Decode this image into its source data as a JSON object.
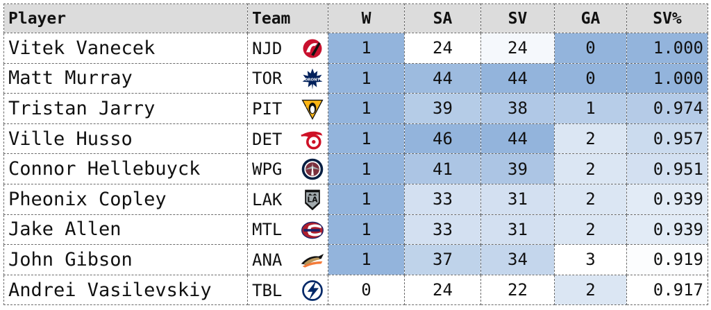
{
  "chart_data": {
    "type": "table",
    "columns": [
      "Player",
      "Team",
      "W",
      "SA",
      "SV",
      "GA",
      "SV%"
    ],
    "rows": [
      {
        "player": "Vitek Vanecek",
        "team": "NJD",
        "logo": "devils-logo-icon",
        "w": "1",
        "sa": "24",
        "sv": "24",
        "ga": "0",
        "svp": "1.000"
      },
      {
        "player": "Matt Murray",
        "team": "TOR",
        "logo": "maple-leafs-logo-icon",
        "w": "1",
        "sa": "44",
        "sv": "44",
        "ga": "0",
        "svp": "1.000"
      },
      {
        "player": "Tristan Jarry",
        "team": "PIT",
        "logo": "penguins-logo-icon",
        "w": "1",
        "sa": "39",
        "sv": "38",
        "ga": "1",
        "svp": "0.974"
      },
      {
        "player": "Ville Husso",
        "team": "DET",
        "logo": "red-wings-logo-icon",
        "w": "1",
        "sa": "46",
        "sv": "44",
        "ga": "2",
        "svp": "0.957"
      },
      {
        "player": "Connor Hellebuyck",
        "team": "WPG",
        "logo": "jets-logo-icon",
        "w": "1",
        "sa": "41",
        "sv": "39",
        "ga": "2",
        "svp": "0.951"
      },
      {
        "player": "Pheonix Copley",
        "team": "LAK",
        "logo": "kings-logo-icon",
        "w": "1",
        "sa": "33",
        "sv": "31",
        "ga": "2",
        "svp": "0.939"
      },
      {
        "player": "Jake Allen",
        "team": "MTL",
        "logo": "canadiens-logo-icon",
        "w": "1",
        "sa": "33",
        "sv": "31",
        "ga": "2",
        "svp": "0.939"
      },
      {
        "player": "John Gibson",
        "team": "ANA",
        "logo": "ducks-logo-icon",
        "w": "1",
        "sa": "37",
        "sv": "34",
        "ga": "3",
        "svp": "0.919"
      },
      {
        "player": "Andrei Vasilevskiy",
        "team": "TBL",
        "logo": "lightning-logo-icon",
        "w": "0",
        "sa": "24",
        "sv": "22",
        "ga": "2",
        "svp": "0.917"
      }
    ]
  },
  "colors": {
    "header_bg": "#dcdcdc",
    "scale_low": "#ffffff",
    "scale_high": "#93b4dc"
  }
}
